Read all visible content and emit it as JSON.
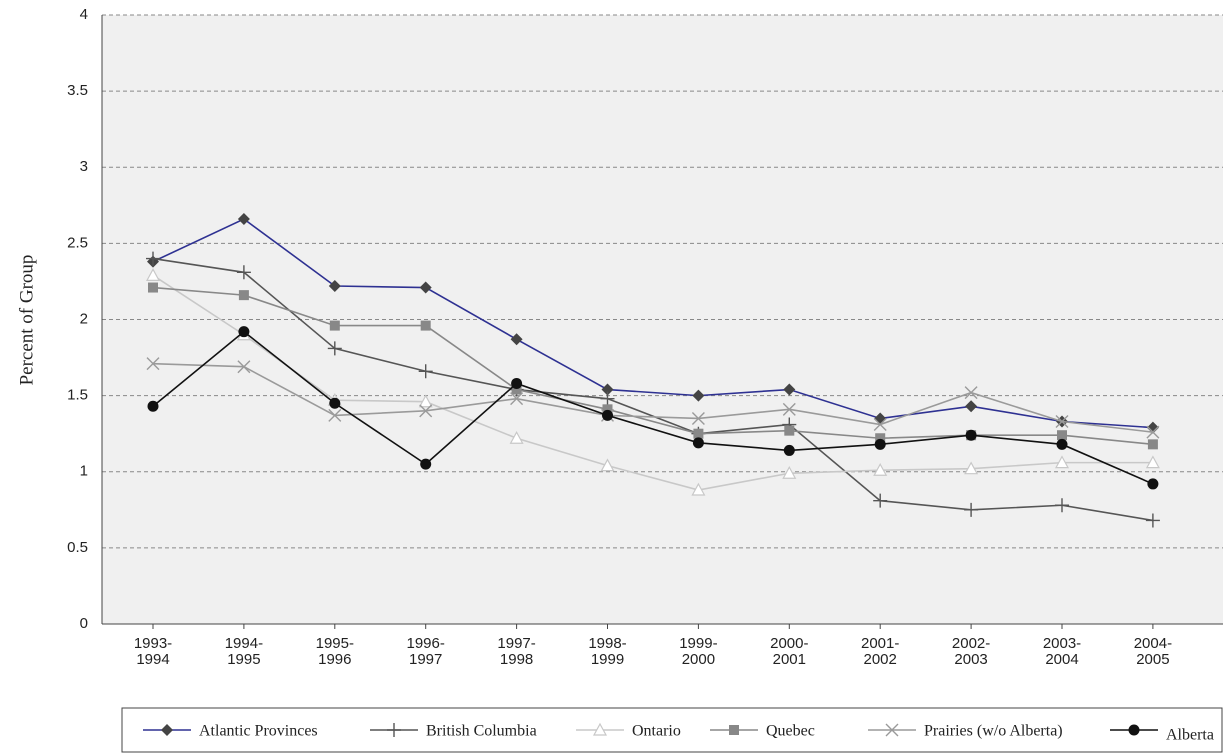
{
  "chart_data": {
    "type": "line",
    "y_label": "Percent of Group",
    "categories": [
      "1993-1994",
      "1994-1995",
      "1995-1996",
      "1996-1997",
      "1997-1998",
      "1998-1999",
      "1999-2000",
      "2000-2001",
      "2001-2002",
      "2002-2003",
      "2003-2004",
      "2004-2005"
    ],
    "series": [
      {
        "name": "Atlantic Provinces",
        "color": "#2e3192",
        "marker_color": "#444444",
        "marker": "diamond",
        "values": [
          2.38,
          2.66,
          2.22,
          2.21,
          1.87,
          1.54,
          1.5,
          1.54,
          1.35,
          1.43,
          1.33,
          1.29
        ]
      },
      {
        "name": "British Columbia",
        "color": "#555555",
        "marker_color": "#555555",
        "marker": "plus",
        "values": [
          2.4,
          2.31,
          1.81,
          1.66,
          1.54,
          1.48,
          1.25,
          1.31,
          0.81,
          0.75,
          0.78,
          0.68
        ]
      },
      {
        "name": "Ontario",
        "color": "#c8c8c8",
        "marker_color": "#c8c8c8",
        "marker": "triangle",
        "values": [
          2.29,
          1.9,
          1.47,
          1.46,
          1.22,
          1.04,
          0.88,
          0.99,
          1.01,
          1.02,
          1.06,
          1.06
        ]
      },
      {
        "name": "Quebec",
        "color": "#888888",
        "marker_color": "#888888",
        "marker": "square",
        "values": [
          2.21,
          2.16,
          1.96,
          1.96,
          1.54,
          1.41,
          1.25,
          1.27,
          1.22,
          1.24,
          1.24,
          1.18
        ]
      },
      {
        "name": "Prairies (w/o Alberta)",
        "color": "#9a9a9a",
        "marker_color": "#9a9a9a",
        "marker": "x",
        "values": [
          1.71,
          1.69,
          1.37,
          1.4,
          1.48,
          1.37,
          1.35,
          1.41,
          1.31,
          1.52,
          1.33,
          1.26
        ]
      },
      {
        "name": "Alberta",
        "color": "#111111",
        "marker_color": "#111111",
        "marker": "circle",
        "values": [
          1.43,
          1.92,
          1.45,
          1.05,
          1.58,
          1.37,
          1.19,
          1.14,
          1.18,
          1.24,
          1.18,
          0.92
        ]
      }
    ],
    "ylim": [
      0,
      4
    ],
    "yticks": [
      0,
      0.5,
      1,
      1.5,
      2,
      2.5,
      3,
      3.5,
      4
    ],
    "grid": true
  }
}
